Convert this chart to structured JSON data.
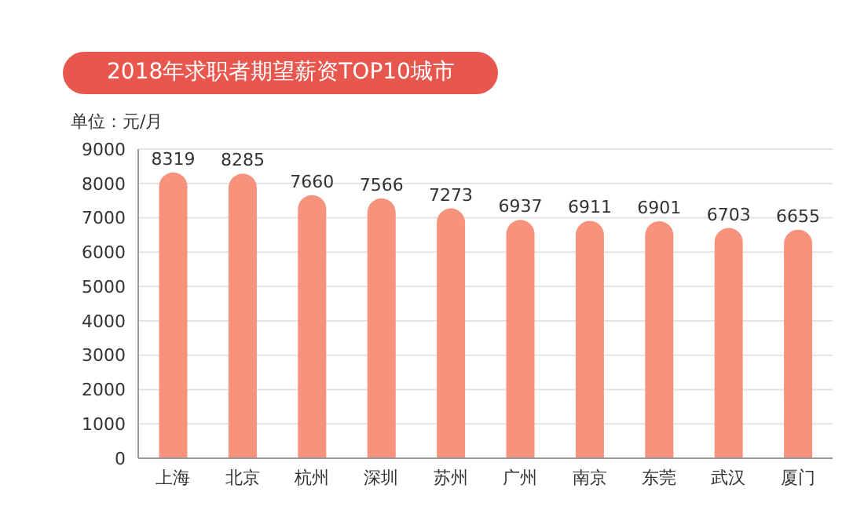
{
  "chart_data": {
    "type": "bar",
    "title": "2018年求职者期望薪资TOP10城市",
    "ylabel": "单位：元/月",
    "categories": [
      "上海",
      "北京",
      "杭州",
      "深圳",
      "苏州",
      "广州",
      "南京",
      "东莞",
      "武汉",
      "厦门"
    ],
    "values": [
      8319,
      8285,
      7660,
      7566,
      7273,
      6937,
      6911,
      6901,
      6703,
      6655
    ],
    "color": "#f7927c",
    "ylim": [
      0,
      9000
    ],
    "yticks": [
      0,
      1000,
      2000,
      3000,
      4000,
      5000,
      6000,
      7000,
      8000,
      9000
    ],
    "grid": "y",
    "data_labels": true
  }
}
